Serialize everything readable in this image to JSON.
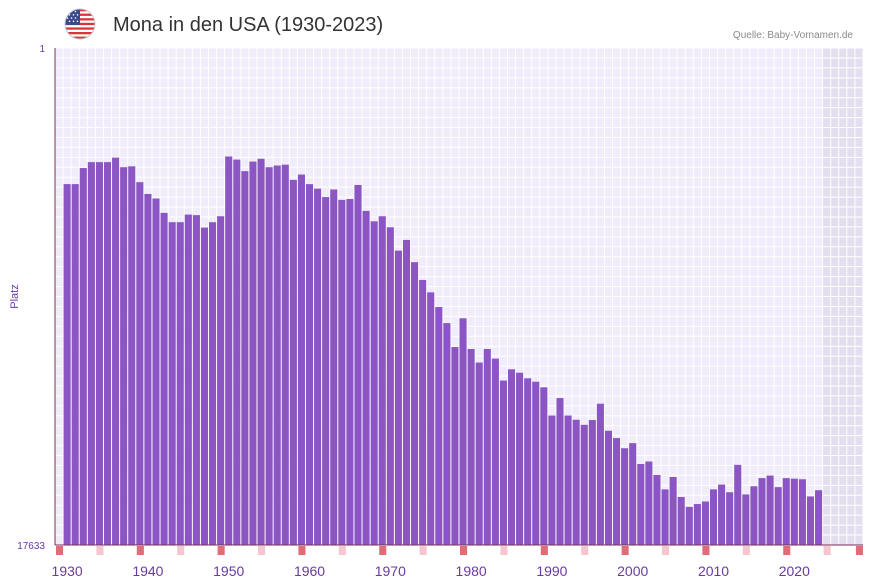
{
  "header": {
    "title": "Mona in den USA (1930-2023)",
    "source": "Quelle: Baby-Vornamen.de",
    "flag_icon": "us-flag-icon"
  },
  "colors": {
    "bar": "#8b55c4",
    "plot_bg": "#f1ecfa",
    "grid": "#ffffff",
    "future_bg": "#e4dfee",
    "axis": "#7a2f5a",
    "label": "#6a3aa0",
    "decade_marker": "#e06c78",
    "mid_marker": "#f4c7cf"
  },
  "chart_data": {
    "type": "bar",
    "title": "Mona in den USA (1930-2023)",
    "ylabel": "Platz",
    "xlabel": "",
    "ylim_labels": [
      "1",
      "17633"
    ],
    "y_axis": "rank (1 at top, 17633 at bottom)",
    "x_tick_labels": [
      "1930",
      "1940",
      "1950",
      "1960",
      "1970",
      "1980",
      "1990",
      "2000",
      "2010",
      "2020"
    ],
    "x_range": [
      1929,
      2029
    ],
    "x": [
      1930,
      1931,
      1932,
      1933,
      1934,
      1935,
      1936,
      1937,
      1938,
      1939,
      1940,
      1941,
      1942,
      1943,
      1944,
      1945,
      1946,
      1947,
      1948,
      1949,
      1950,
      1951,
      1952,
      1953,
      1954,
      1955,
      1956,
      1957,
      1958,
      1959,
      1960,
      1961,
      1962,
      1963,
      1964,
      1965,
      1966,
      1967,
      1968,
      1969,
      1970,
      1971,
      1972,
      1973,
      1974,
      1975,
      1976,
      1977,
      1978,
      1979,
      1980,
      1981,
      1982,
      1983,
      1984,
      1985,
      1986,
      1987,
      1988,
      1989,
      1990,
      1991,
      1992,
      1993,
      1994,
      1995,
      1996,
      1997,
      1998,
      1999,
      2000,
      2001,
      2002,
      2003,
      2004,
      2005,
      2006,
      2007,
      2008,
      2009,
      2010,
      2011,
      2012,
      2013,
      2014,
      2015,
      2016,
      2017,
      2018,
      2019,
      2020,
      2021,
      2022,
      2023
    ],
    "values": [
      4830,
      4830,
      4260,
      4050,
      4050,
      4050,
      3890,
      4230,
      4200,
      4760,
      5180,
      5340,
      5850,
      6180,
      6180,
      5910,
      5930,
      6370,
      6180,
      5970,
      3850,
      3960,
      4370,
      4030,
      3930,
      4230,
      4170,
      4140,
      4680,
      4490,
      4830,
      4990,
      5290,
      5020,
      5390,
      5360,
      4860,
      5780,
      6150,
      5970,
      6360,
      7190,
      6810,
      7600,
      8230,
      8670,
      9190,
      9760,
      10610,
      9590,
      10680,
      11160,
      10680,
      11020,
      11800,
      11400,
      11520,
      11720,
      11840,
      12040,
      13040,
      12420,
      13040,
      13190,
      13370,
      13200,
      12620,
      13580,
      13840,
      14200,
      14020,
      14760,
      14670,
      15150,
      15660,
      15220,
      15930,
      16280,
      16180,
      16090,
      15660,
      15490,
      15760,
      14790,
      15840,
      15550,
      15260,
      15170,
      15580,
      15260,
      15280,
      15300,
      15910,
      15690
    ]
  }
}
